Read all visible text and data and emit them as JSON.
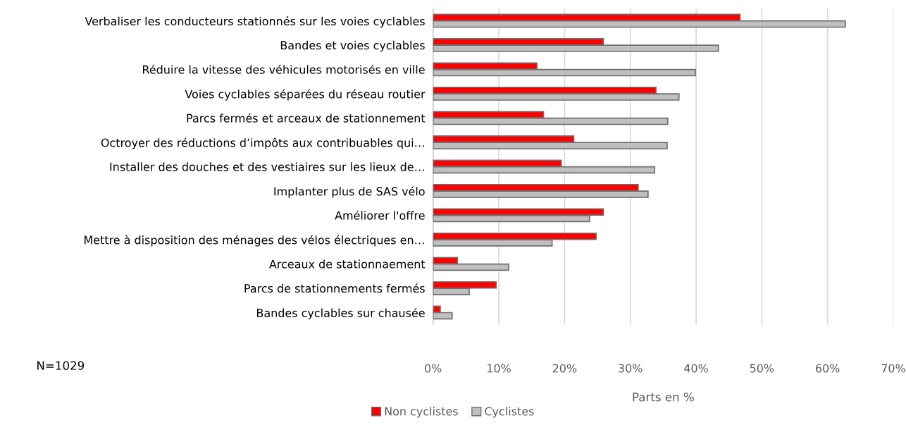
{
  "chart_data": {
    "type": "bar",
    "orientation": "horizontal",
    "xlabel": "Parts en %",
    "categories": [
      "Verbaliser les conducteurs stationnés sur les voies cyclables",
      "Bandes et voies cyclables",
      "Réduire la vitesse des véhicules motorisés en ville",
      "Voies cyclables séparées du réseau routier",
      "Parcs fermés et arceaux de stationnement",
      "Octroyer des réductions d’impôts aux contribuables qui…",
      "Installer des douches et des vestiaires sur les lieux de…",
      "Implanter plus de SAS vélo",
      "Améliorer l'offre",
      "Mettre à disposition des ménages des vélos électriques en…",
      "Arceaux de stationnaement",
      "Parcs de stationnements fermés",
      "Bandes cyclables sur chausée"
    ],
    "series": [
      {
        "name": "Non cyclistes",
        "color": "#ff0000",
        "values": [
          46.7,
          25.9,
          15.8,
          33.9,
          16.8,
          21.4,
          19.5,
          31.2,
          25.9,
          24.8,
          3.7,
          9.6,
          1.1
        ]
      },
      {
        "name": "Cyclistes",
        "color": "#bfbfbf",
        "values": [
          62.7,
          43.4,
          39.9,
          37.4,
          35.7,
          35.6,
          33.7,
          32.7,
          23.8,
          18.1,
          11.5,
          5.5,
          2.9
        ]
      }
    ],
    "xlim": [
      0,
      70
    ],
    "xticks": [
      {
        "value": 0,
        "label": "0%"
      },
      {
        "value": 10,
        "label": "10%"
      },
      {
        "value": 20,
        "label": "20%"
      },
      {
        "value": 30,
        "label": "30%"
      },
      {
        "value": 40,
        "label": "40%"
      },
      {
        "value": 50,
        "label": "50%"
      },
      {
        "value": 60,
        "label": "60%"
      },
      {
        "value": 70,
        "label": "70%"
      }
    ],
    "grid": "x",
    "legend": "bottom",
    "annotations": [
      "N=1029"
    ]
  }
}
